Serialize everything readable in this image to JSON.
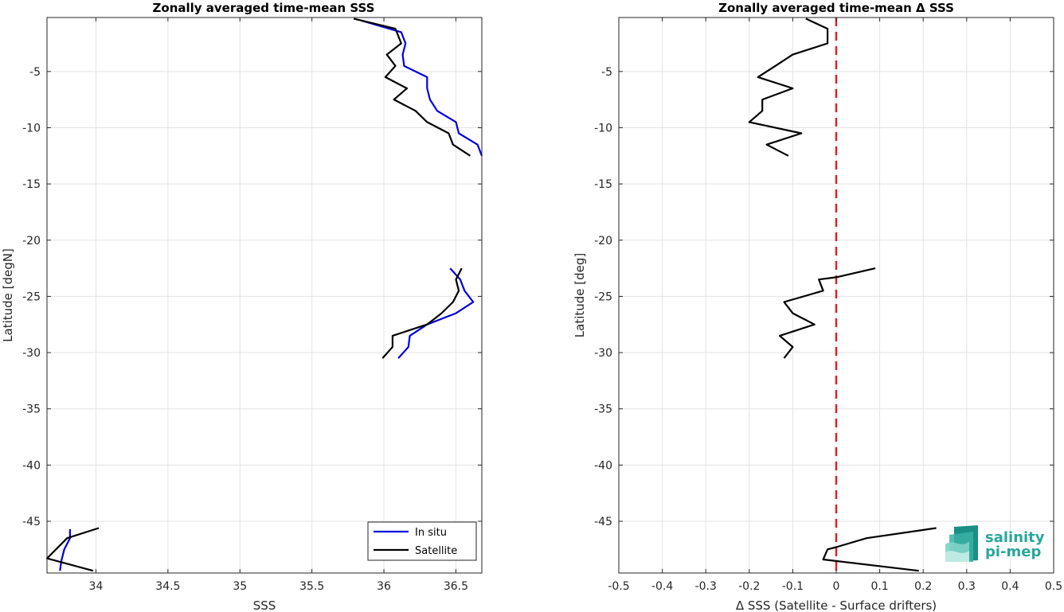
{
  "colors": {
    "in_situ": "#0000dd",
    "satellite": "#000000",
    "zero_line": "#dd2222",
    "grid": "#e3e3e3",
    "logo": "#2aa79b"
  },
  "logo": {
    "line1": "salinity",
    "line2": "pi-mep",
    "icon": "salinity-wave-logo-icon"
  },
  "chart_data": [
    {
      "type": "line",
      "title": "Zonally averaged time-mean SSS",
      "xlabel": "SSS",
      "ylabel": "Latitude [degN]",
      "xlim": [
        33.66,
        36.68
      ],
      "ylim": [
        -49.6,
        -0.2
      ],
      "xticks": [
        34,
        34.5,
        35,
        35.5,
        36,
        36.5
      ],
      "xtick_labels": [
        "34",
        "34.5",
        "35",
        "35.5",
        "36",
        "36.5"
      ],
      "yticks": [
        -5,
        -10,
        -15,
        -20,
        -25,
        -30,
        -35,
        -40,
        -45
      ],
      "ytick_labels": [
        "-5",
        "-10",
        "-15",
        "-20",
        "-25",
        "-30",
        "-35",
        "-40",
        "-45"
      ],
      "grid": true,
      "legend": {
        "placement": "bottom-right",
        "entries": [
          "In situ",
          "Satellite"
        ]
      },
      "series": [
        {
          "name": "In situ",
          "segments": [
            [
              [
                35.85,
                -0.5
              ],
              [
                36.12,
                -1.5
              ],
              [
                36.15,
                -2.5
              ],
              [
                36.13,
                -3.5
              ],
              [
                36.14,
                -4.5
              ],
              [
                36.3,
                -5.5
              ],
              [
                36.3,
                -6.5
              ],
              [
                36.32,
                -7.5
              ],
              [
                36.37,
                -8.5
              ],
              [
                36.5,
                -9.5
              ],
              [
                36.52,
                -10.5
              ],
              [
                36.65,
                -11.5
              ],
              [
                36.68,
                -12.5
              ]
            ],
            [
              [
                36.46,
                -22.5
              ],
              [
                36.53,
                -23.5
              ],
              [
                36.56,
                -24.5
              ],
              [
                36.62,
                -25.5
              ],
              [
                36.5,
                -26.5
              ],
              [
                36.3,
                -27.5
              ],
              [
                36.18,
                -28.5
              ],
              [
                36.17,
                -29.5
              ],
              [
                36.1,
                -30.5
              ]
            ],
            [
              [
                33.82,
                -45.7
              ],
              [
                33.82,
                -46.5
              ],
              [
                33.78,
                -47.5
              ],
              [
                33.76,
                -48.5
              ],
              [
                33.75,
                -49.4
              ]
            ]
          ]
        },
        {
          "name": "Satellite",
          "segments": [
            [
              [
                35.79,
                -0.3
              ],
              [
                36.08,
                -1.2
              ],
              [
                36.12,
                -2.5
              ],
              [
                36.02,
                -3.5
              ],
              [
                36.08,
                -4.5
              ],
              [
                36.01,
                -5.5
              ],
              [
                36.16,
                -6.5
              ],
              [
                36.07,
                -7.5
              ],
              [
                36.22,
                -8.5
              ],
              [
                36.3,
                -9.5
              ],
              [
                36.45,
                -10.5
              ],
              [
                36.48,
                -11.5
              ],
              [
                36.6,
                -12.5
              ]
            ],
            [
              [
                36.54,
                -22.5
              ],
              [
                36.5,
                -23.5
              ],
              [
                36.52,
                -24.5
              ],
              [
                36.48,
                -25.5
              ],
              [
                36.4,
                -26.5
              ],
              [
                36.3,
                -27.5
              ],
              [
                36.06,
                -28.5
              ],
              [
                36.06,
                -29.5
              ],
              [
                35.99,
                -30.5
              ]
            ],
            [
              [
                34.02,
                -45.6
              ],
              [
                33.8,
                -46.5
              ],
              [
                33.66,
                -48.3
              ],
              [
                33.98,
                -49.4
              ]
            ]
          ]
        }
      ]
    },
    {
      "type": "line",
      "title": "Zonally averaged time-mean Δ SSS",
      "xlabel": "Δ SSS (Satellite - Surface drifters)",
      "ylabel": "Latitude [deg]",
      "xlim": [
        -0.5,
        0.5
      ],
      "ylim": [
        -49.6,
        -0.2
      ],
      "xticks": [
        -0.5,
        -0.4,
        -0.3,
        -0.2,
        -0.1,
        0,
        0.1,
        0.2,
        0.3,
        0.4,
        0.5
      ],
      "xtick_labels": [
        "-0.5",
        "-0.4",
        "-0.3",
        "-0.2",
        "-0.1",
        "0",
        "0.1",
        "0.2",
        "0.3",
        "0.4",
        "0.5"
      ],
      "yticks": [
        -5,
        -10,
        -15,
        -20,
        -25,
        -30,
        -35,
        -40,
        -45
      ],
      "ytick_labels": [
        "-5",
        "-10",
        "-15",
        "-20",
        "-25",
        "-30",
        "-35",
        "-40",
        "-45"
      ],
      "grid": true,
      "reference_line": {
        "x": 0,
        "style": "dashed"
      },
      "series": [
        {
          "segments": [
            [
              [
                -0.07,
                -0.3
              ],
              [
                -0.02,
                -1.2
              ],
              [
                -0.02,
                -2.5
              ],
              [
                -0.1,
                -3.5
              ],
              [
                -0.14,
                -4.5
              ],
              [
                -0.18,
                -5.5
              ],
              [
                -0.1,
                -6.5
              ],
              [
                -0.17,
                -7.5
              ],
              [
                -0.17,
                -8.5
              ],
              [
                -0.2,
                -9.5
              ],
              [
                -0.08,
                -10.5
              ],
              [
                -0.16,
                -11.5
              ],
              [
                -0.11,
                -12.5
              ]
            ],
            [
              [
                0.09,
                -22.5
              ],
              [
                0,
                -23.3
              ],
              [
                -0.04,
                -23.5
              ],
              [
                -0.03,
                -24.5
              ],
              [
                -0.12,
                -25.5
              ],
              [
                -0.1,
                -26.5
              ],
              [
                -0.05,
                -27.5
              ],
              [
                -0.13,
                -28.5
              ],
              [
                -0.1,
                -29.5
              ],
              [
                -0.12,
                -30.5
              ]
            ],
            [
              [
                0.23,
                -45.6
              ],
              [
                0.07,
                -46.5
              ],
              [
                0,
                -47.3
              ],
              [
                -0.02,
                -47.5
              ],
              [
                -0.03,
                -48.4
              ],
              [
                0.19,
                -49.4
              ]
            ]
          ]
        }
      ]
    }
  ]
}
